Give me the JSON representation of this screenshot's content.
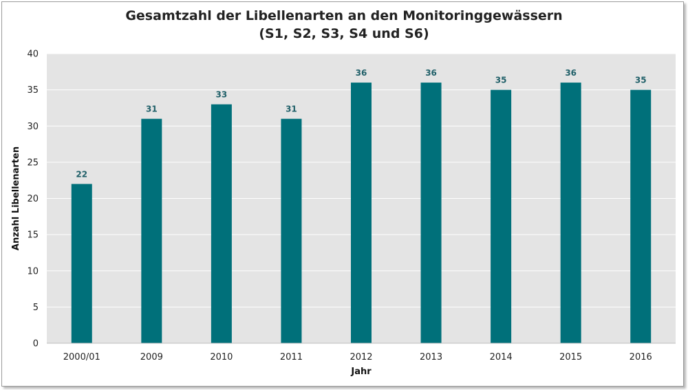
{
  "chart_data": {
    "type": "bar",
    "title": "Gesamtzahl der Libellenarten an den Monitoringgewässern",
    "subtitle": "(S1, S2, S3, S4 und S6)",
    "xlabel": "Jahr",
    "ylabel": "Anzahl Libellenarten",
    "categories": [
      "2000/01",
      "2009",
      "2010",
      "2011",
      "2012",
      "2013",
      "2014",
      "2015",
      "2016"
    ],
    "values": [
      22,
      31,
      33,
      31,
      36,
      36,
      35,
      36,
      35
    ],
    "ylim": [
      0,
      40
    ],
    "yticks": [
      0,
      5,
      10,
      15,
      20,
      25,
      30,
      35,
      40
    ],
    "grid": true,
    "legend": "none",
    "colors": {
      "bar": "#00707a",
      "data_label": "#1f5f68",
      "plot_background": "#e4e4e4",
      "grid": "#ffffff"
    }
  }
}
